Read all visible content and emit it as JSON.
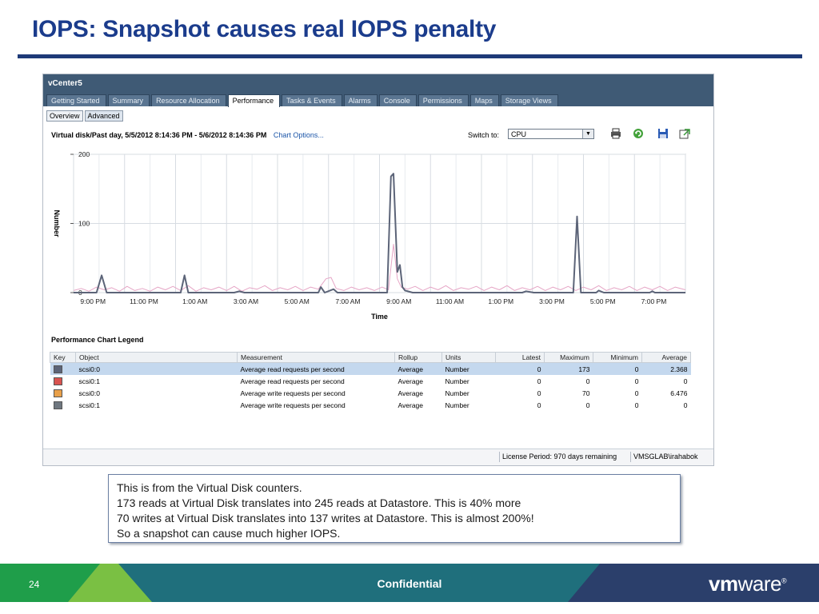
{
  "slide": {
    "title": "IOPS: Snapshot causes real IOPS penalty",
    "page_number": "24",
    "footer_text": "Confidential",
    "logo_vm": "vm",
    "logo_ware": "ware",
    "colors": {
      "title": "#1b3c8c",
      "footer_green": "#1f9e4a",
      "footer_teal": "#1f6f7c",
      "footer_navy": "#2b3f6b"
    }
  },
  "vcenter": {
    "name": "vCenter5",
    "tabs": [
      "Getting Started",
      "Summary",
      "Resource Allocation",
      "Performance",
      "Tasks & Events",
      "Alarms",
      "Console",
      "Permissions",
      "Maps",
      "Storage Views"
    ],
    "active_tab": "Performance",
    "subtabs": [
      "Overview",
      "Advanced"
    ],
    "active_subtab": "Advanced",
    "chart_heading": "Virtual disk/Past day, 5/5/2012 8:14:36 PM - 5/6/2012 8:14:36 PM",
    "chart_options": "Chart Options...",
    "switch_to_label": "Switch to:",
    "switch_to_value": "CPU",
    "toolbar_icons": [
      "print-icon",
      "refresh-icon",
      "save-icon",
      "popout-icon"
    ]
  },
  "chart_data": {
    "type": "line",
    "title": "",
    "ylabel": "Number",
    "xlabel": "Time",
    "ylim": [
      0,
      200
    ],
    "yticks": [
      0,
      100,
      200
    ],
    "xticks": [
      "9:00 PM",
      "11:00 PM",
      "1:00 AM",
      "3:00 AM",
      "5:00 AM",
      "7:00 AM",
      "9:00 AM",
      "11:00 AM",
      "1:00 PM",
      "3:00 PM",
      "5:00 PM",
      "7:00 PM"
    ],
    "x_range_hours": [
      0,
      24
    ],
    "grid": true,
    "series": [
      {
        "color": "#5c6478",
        "points": [
          [
            0,
            0
          ],
          [
            0.9,
            0
          ],
          [
            1.1,
            25
          ],
          [
            1.3,
            0
          ],
          [
            4.2,
            0
          ],
          [
            4.35,
            25
          ],
          [
            4.5,
            0
          ],
          [
            6.3,
            0
          ],
          [
            6.5,
            2
          ],
          [
            6.7,
            0
          ],
          [
            9.6,
            0
          ],
          [
            9.7,
            8
          ],
          [
            9.85,
            0
          ],
          [
            10.2,
            5
          ],
          [
            10.35,
            0
          ],
          [
            12.3,
            0
          ],
          [
            12.45,
            168
          ],
          [
            12.55,
            172
          ],
          [
            12.7,
            30
          ],
          [
            12.8,
            40
          ],
          [
            12.9,
            8
          ],
          [
            13.0,
            3
          ],
          [
            13.3,
            0
          ],
          [
            17.6,
            0
          ],
          [
            17.75,
            2
          ],
          [
            18.05,
            0
          ],
          [
            19.6,
            0
          ],
          [
            19.75,
            110
          ],
          [
            19.9,
            0
          ],
          [
            20.5,
            0
          ],
          [
            20.6,
            3
          ],
          [
            20.8,
            0
          ],
          [
            22.6,
            0
          ],
          [
            22.7,
            2
          ],
          [
            22.8,
            0
          ],
          [
            24,
            0
          ]
        ]
      },
      {
        "color": "#e6a6c6",
        "points": [
          [
            0,
            3
          ],
          [
            0.3,
            6
          ],
          [
            0.6,
            2
          ],
          [
            0.9,
            8
          ],
          [
            1.2,
            4
          ],
          [
            1.5,
            7
          ],
          [
            1.8,
            2
          ],
          [
            2.1,
            9
          ],
          [
            2.4,
            3
          ],
          [
            2.7,
            6
          ],
          [
            3.0,
            2
          ],
          [
            3.3,
            8
          ],
          [
            3.6,
            4
          ],
          [
            3.9,
            9
          ],
          [
            4.2,
            3
          ],
          [
            4.5,
            10
          ],
          [
            4.8,
            2
          ],
          [
            5.1,
            7
          ],
          [
            5.4,
            4
          ],
          [
            5.7,
            8
          ],
          [
            6.0,
            3
          ],
          [
            6.3,
            9
          ],
          [
            6.6,
            2
          ],
          [
            6.9,
            7
          ],
          [
            7.2,
            5
          ],
          [
            7.5,
            10
          ],
          [
            7.8,
            3
          ],
          [
            8.1,
            7
          ],
          [
            8.4,
            4
          ],
          [
            8.7,
            9
          ],
          [
            9.0,
            3
          ],
          [
            9.3,
            8
          ],
          [
            9.6,
            5
          ],
          [
            9.9,
            20
          ],
          [
            10.1,
            22
          ],
          [
            10.3,
            6
          ],
          [
            10.6,
            3
          ],
          [
            10.9,
            8
          ],
          [
            11.2,
            4
          ],
          [
            11.5,
            7
          ],
          [
            11.8,
            3
          ],
          [
            12.1,
            8
          ],
          [
            12.35,
            4
          ],
          [
            12.55,
            70
          ],
          [
            12.7,
            20
          ],
          [
            12.85,
            8
          ],
          [
            13.1,
            5
          ],
          [
            13.4,
            9
          ],
          [
            13.7,
            3
          ],
          [
            14.0,
            8
          ],
          [
            14.3,
            4
          ],
          [
            14.6,
            10
          ],
          [
            14.9,
            3
          ],
          [
            15.2,
            7
          ],
          [
            15.5,
            5
          ],
          [
            15.8,
            9
          ],
          [
            16.1,
            3
          ],
          [
            16.4,
            8
          ],
          [
            16.7,
            4
          ],
          [
            17.0,
            10
          ],
          [
            17.3,
            3
          ],
          [
            17.6,
            7
          ],
          [
            17.9,
            4
          ],
          [
            18.2,
            9
          ],
          [
            18.5,
            3
          ],
          [
            18.8,
            8
          ],
          [
            19.1,
            4
          ],
          [
            19.4,
            9
          ],
          [
            19.7,
            3
          ],
          [
            20.0,
            8
          ],
          [
            20.3,
            4
          ],
          [
            20.6,
            10
          ],
          [
            20.9,
            3
          ],
          [
            21.2,
            7
          ],
          [
            21.5,
            4
          ],
          [
            21.8,
            9
          ],
          [
            22.1,
            3
          ],
          [
            22.4,
            8
          ],
          [
            22.7,
            4
          ],
          [
            23.0,
            9
          ],
          [
            23.3,
            3
          ],
          [
            23.6,
            8
          ],
          [
            24,
            4
          ]
        ]
      }
    ]
  },
  "legend": {
    "title": "Performance Chart Legend",
    "columns": [
      "Key",
      "Object",
      "Measurement",
      "Rollup",
      "Units",
      "Latest",
      "Maximum",
      "Minimum",
      "Average"
    ],
    "rows": [
      {
        "key_color": "#5c6478",
        "object": "scsi0:0",
        "measurement": "Average read requests per second",
        "rollup": "Average",
        "units": "Number",
        "latest": "0",
        "maximum": "173",
        "minimum": "0",
        "average": "2.368",
        "selected": true
      },
      {
        "key_color": "#d9534f",
        "object": "scsi0:1",
        "measurement": "Average read requests per second",
        "rollup": "Average",
        "units": "Number",
        "latest": "0",
        "maximum": "0",
        "minimum": "0",
        "average": "0",
        "selected": false
      },
      {
        "key_color": "#e8a04a",
        "object": "scsi0:0",
        "measurement": "Average write requests per second",
        "rollup": "Average",
        "units": "Number",
        "latest": "0",
        "maximum": "70",
        "minimum": "0",
        "average": "6.476",
        "selected": false
      },
      {
        "key_color": "#6f7780",
        "object": "scsi0:1",
        "measurement": "Average write requests per second",
        "rollup": "Average",
        "units": "Number",
        "latest": "0",
        "maximum": "0",
        "minimum": "0",
        "average": "0",
        "selected": false
      }
    ]
  },
  "status_bar": {
    "license": "License Period: 970 days remaining",
    "user": "VMSGLAB\\irahabok"
  },
  "callout": {
    "lines": [
      "This is from the Virtual Disk counters.",
      "173 reads at Virtual Disk translates into 245 reads at Datastore. This is 40% more",
      "70 writes at Virtual Disk translates into 137 writes at Datastore. This is almost 200%!",
      "So a snapshot can cause much higher IOPS."
    ]
  }
}
